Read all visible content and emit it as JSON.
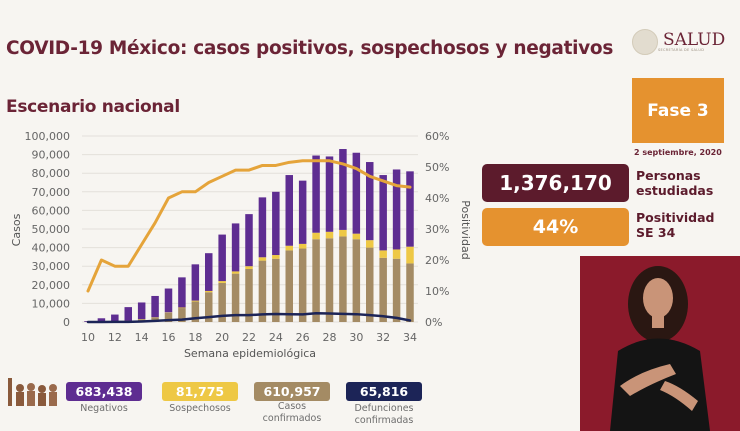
{
  "header": {
    "title": "COVID-19 México: casos positivos, sospechosos y negativos",
    "subtitle": "Escenario nacional",
    "logo_text": "SALUD",
    "logo_subtext": "SECRETARÍA DE SALUD",
    "logo_icon": "mexico-seal-icon"
  },
  "phase": {
    "label": "Fase 3",
    "date": "2 septiembre, 2020"
  },
  "stats": [
    {
      "value": "1,376,170",
      "label_line1": "Personas",
      "label_line2": "estudiadas",
      "color": "#5c1b2c"
    },
    {
      "value": "44%",
      "label_line1": "Positividad",
      "label_line2": "SE 34",
      "color": "#e5922f"
    }
  ],
  "legend": [
    {
      "value": "683,438",
      "label_line1": "Negativos",
      "label_line2": "",
      "color": "#5e2d91"
    },
    {
      "value": "81,775",
      "label_line1": "Sospechosos",
      "label_line2": "",
      "color": "#eec845"
    },
    {
      "value": "610,957",
      "label_line1": "Casos",
      "label_line2": "confirmados",
      "color": "#a48b64"
    },
    {
      "value": "65,816",
      "label_line1": "Defunciones",
      "label_line2": "confirmadas",
      "color": "#1c2457"
    }
  ],
  "colors": {
    "negativos": "#5e2d91",
    "sospechosos": "#eec845",
    "confirmados": "#a48b64",
    "defunciones": "#1c2457",
    "positividad": "#e5a43a",
    "title": "#6b2436"
  },
  "chart_data": {
    "type": "bar",
    "subtype": "stacked bar + line (dual axis)",
    "xlabel": "Semana epidemiológica",
    "ylabel": "Casos",
    "y2label": "Positividad",
    "ylim": [
      0,
      100000
    ],
    "y2lim": [
      0,
      60
    ],
    "yticks": [
      "0",
      "10,000",
      "20,000",
      "30,000",
      "40,000",
      "50,000",
      "60,000",
      "70,000",
      "80,000",
      "90,000",
      "100,000"
    ],
    "y2ticks": [
      "0%",
      "10%",
      "20%",
      "30%",
      "40%",
      "50%",
      "60%"
    ],
    "xticks": [
      "10",
      "12",
      "14",
      "16",
      "18",
      "20",
      "22",
      "24",
      "26",
      "28",
      "30",
      "32",
      "34"
    ],
    "grid": true,
    "x": [
      10,
      11,
      12,
      13,
      14,
      15,
      16,
      17,
      18,
      19,
      20,
      21,
      22,
      23,
      24,
      25,
      26,
      27,
      28,
      29,
      30,
      31,
      32,
      33,
      34
    ],
    "series": [
      {
        "name": "Casos confirmados",
        "axis": "left",
        "kind": "bar-stack",
        "values": [
          100,
          300,
          500,
          800,
          1500,
          2500,
          5000,
          7500,
          11000,
          16000,
          21000,
          26000,
          28500,
          33000,
          34000,
          38500,
          39500,
          44500,
          45000,
          46000,
          44500,
          40000,
          34500,
          34000,
          31500
        ]
      },
      {
        "name": "Sospechosos",
        "axis": "left",
        "kind": "bar-stack",
        "values": [
          0,
          0,
          0,
          0,
          100,
          100,
          200,
          300,
          500,
          700,
          1000,
          1200,
          1500,
          1800,
          2000,
          2500,
          2500,
          3500,
          3500,
          3500,
          3000,
          4000,
          4000,
          5000,
          9000
        ]
      },
      {
        "name": "Negativos",
        "axis": "left",
        "kind": "bar-stack",
        "values": [
          400,
          1700,
          3500,
          7200,
          8900,
          11400,
          12800,
          16200,
          19500,
          20300,
          25000,
          25800,
          28000,
          32200,
          34000,
          38000,
          34000,
          41500,
          40500,
          43500,
          43500,
          42000,
          40500,
          43000,
          40500
        ]
      },
      {
        "name": "Defunciones confirmadas",
        "axis": "left",
        "kind": "line",
        "values": [
          0,
          0,
          50,
          100,
          300,
          600,
          1000,
          1300,
          2000,
          2600,
          3300,
          3700,
          3700,
          4100,
          4300,
          4200,
          4100,
          4700,
          4600,
          4400,
          4200,
          3700,
          3100,
          2200,
          800
        ]
      },
      {
        "name": "Positividad",
        "axis": "right",
        "kind": "line",
        "unit": "%",
        "values": [
          10,
          20,
          18,
          18,
          25,
          32,
          40,
          42,
          42,
          45,
          47,
          49,
          49,
          50.5,
          50.5,
          51.5,
          52,
          52,
          52,
          51,
          49.5,
          47,
          45.5,
          44,
          43.5
        ]
      }
    ]
  }
}
